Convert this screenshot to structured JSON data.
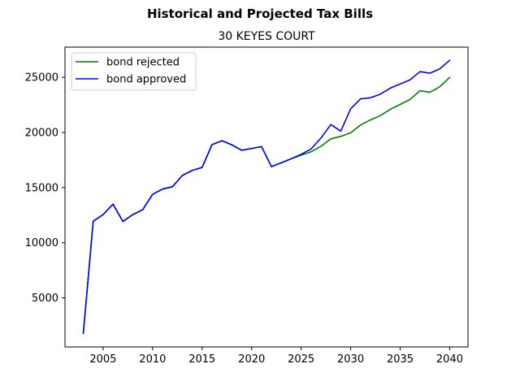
{
  "figure": {
    "suptitle": "Historical and Projected Tax Bills"
  },
  "chart_data": {
    "type": "line",
    "title": "30 KEYES COURT",
    "xlabel": "",
    "ylabel": "",
    "xlim": [
      2001.15,
      2041.85
    ],
    "ylim": [
      545,
      27745
    ],
    "xticks": [
      2005,
      2010,
      2015,
      2020,
      2025,
      2030,
      2035,
      2040
    ],
    "yticks": [
      5000,
      10000,
      15000,
      20000,
      25000
    ],
    "grid": false,
    "legend_position": "upper left",
    "series": [
      {
        "name": "bond rejected",
        "color": "#008000",
        "x": [
          2003,
          2004,
          2005,
          2006,
          2007,
          2008,
          2009,
          2010,
          2011,
          2012,
          2013,
          2014,
          2015,
          2016,
          2017,
          2018,
          2019,
          2020,
          2021,
          2022,
          2023,
          2024,
          2025,
          2026,
          2027,
          2028,
          2029,
          2030,
          2031,
          2032,
          2033,
          2034,
          2035,
          2036,
          2037,
          2038,
          2039,
          2040
        ],
        "values": [
          1780,
          11950,
          12550,
          13500,
          11930,
          12550,
          13000,
          14390,
          14870,
          15080,
          16100,
          16560,
          16830,
          18900,
          19250,
          18880,
          18390,
          18550,
          18720,
          16900,
          17250,
          17620,
          17940,
          18250,
          18750,
          19420,
          19650,
          19970,
          20680,
          21140,
          21530,
          22100,
          22550,
          23000,
          23790,
          23650,
          24150,
          24990
        ]
      },
      {
        "name": "bond approved",
        "color": "#0000ff",
        "x": [
          2003,
          2004,
          2005,
          2006,
          2007,
          2008,
          2009,
          2010,
          2011,
          2012,
          2013,
          2014,
          2015,
          2016,
          2017,
          2018,
          2019,
          2020,
          2021,
          2022,
          2023,
          2024,
          2025,
          2026,
          2027,
          2028,
          2029,
          2030,
          2031,
          2032,
          2033,
          2034,
          2035,
          2036,
          2037,
          2038,
          2039,
          2040
        ],
        "values": [
          1780,
          11950,
          12550,
          13500,
          11930,
          12550,
          13000,
          14390,
          14870,
          15080,
          16100,
          16560,
          16830,
          18900,
          19250,
          18880,
          18390,
          18550,
          18720,
          16900,
          17250,
          17620,
          18020,
          18500,
          19500,
          20720,
          20120,
          22150,
          23050,
          23150,
          23480,
          24020,
          24400,
          24780,
          25520,
          25380,
          25770,
          26550
        ]
      }
    ]
  }
}
